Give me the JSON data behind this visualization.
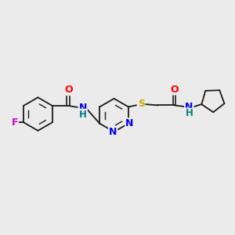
{
  "bg_color": "#ebebeb",
  "bond_color": "#1a1a1a",
  "atom_colors": {
    "F": "#cc00cc",
    "O": "#ff0000",
    "N": "#0000ee",
    "NH_blue": "#0000ee",
    "NH_teal": "#008080",
    "S": "#ccaa00",
    "C": "#1a1a1a"
  },
  "figsize": [
    3.0,
    3.0
  ],
  "dpi": 100
}
